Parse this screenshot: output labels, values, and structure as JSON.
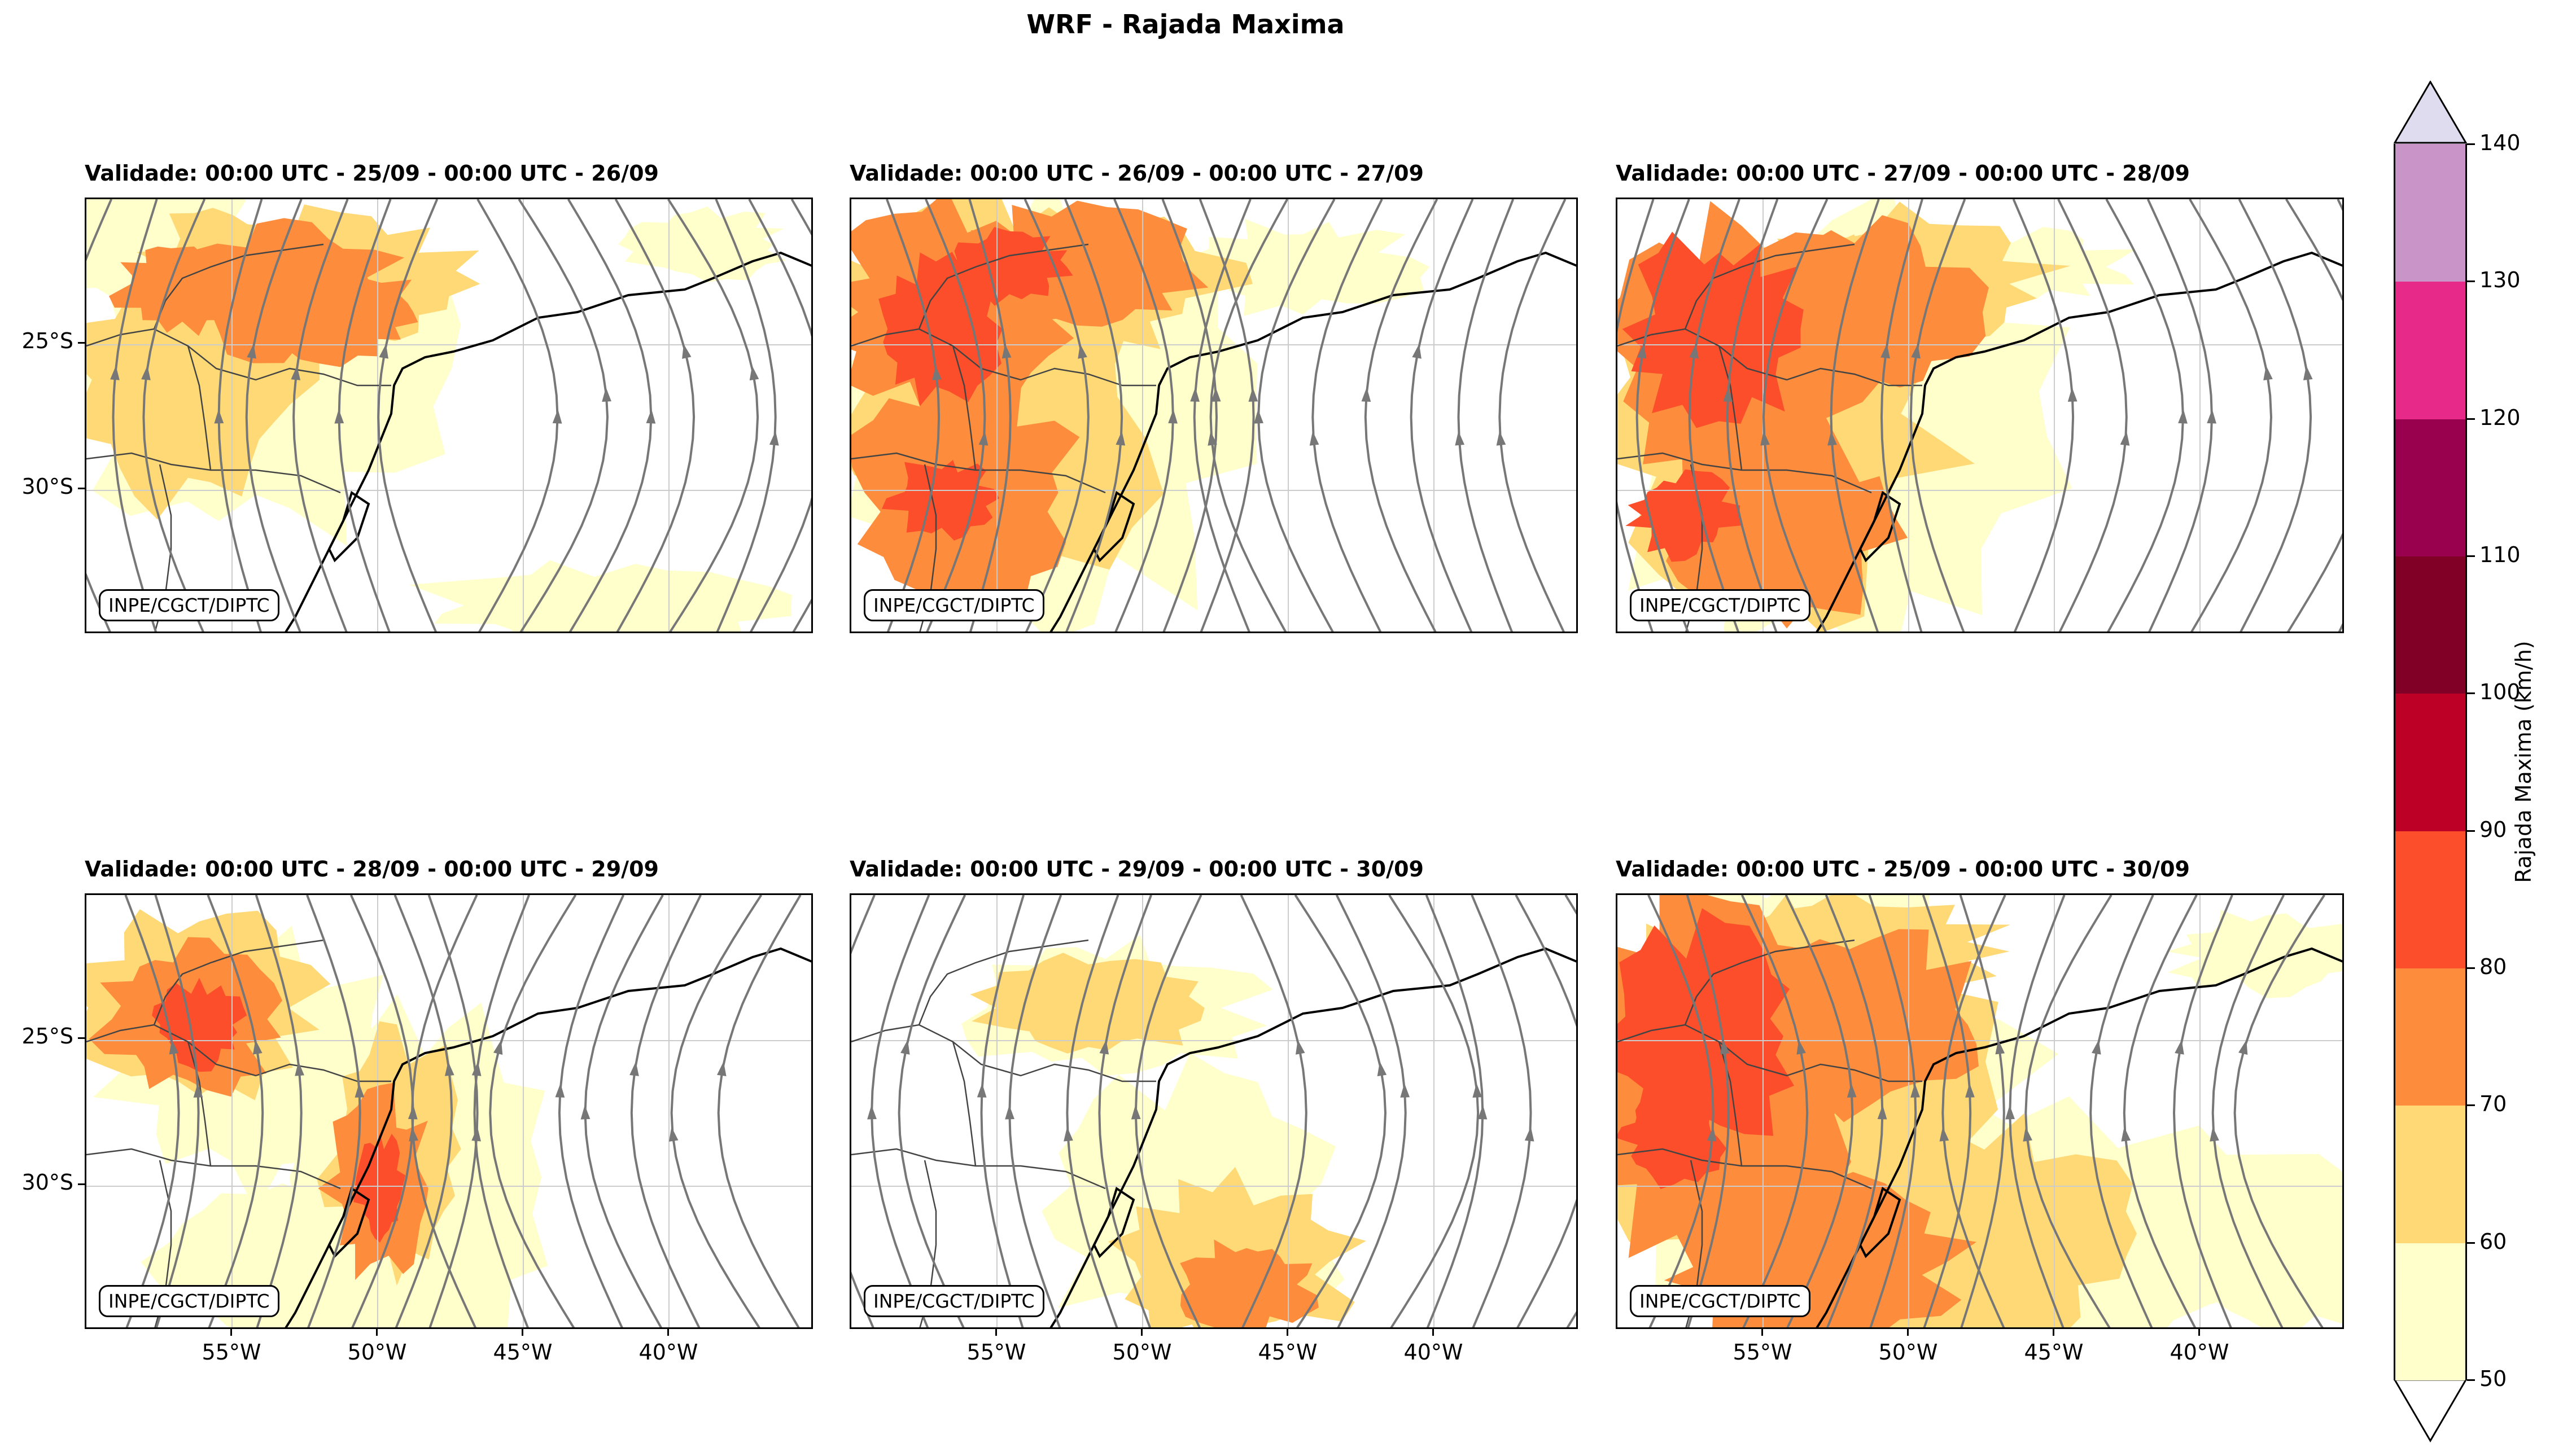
{
  "figure": {
    "title": "WRF - Rajada Maxima",
    "credit": "INPE/CGCT/DIPTC"
  },
  "panels": [
    {
      "title": "Validade: 00:00 UTC - 25/09 - 00:00 UTC - 26/09"
    },
    {
      "title": "Validade: 00:00 UTC - 26/09 - 00:00 UTC - 27/09"
    },
    {
      "title": "Validade: 00:00 UTC - 27/09 - 00:00 UTC - 28/09"
    },
    {
      "title": "Validade: 00:00 UTC - 28/09 - 00:00 UTC - 29/09"
    },
    {
      "title": "Validade: 00:00 UTC - 29/09 - 00:00 UTC - 30/09"
    },
    {
      "title": "Validade: 00:00 UTC - 25/09 - 00:00 UTC - 30/09"
    }
  ],
  "axes": {
    "lat_ticks": [
      "25°S",
      "30°S"
    ],
    "lon_ticks": [
      "55°W",
      "50°W",
      "45°W",
      "40°W"
    ]
  },
  "colorbar": {
    "label": "Rajada Maxima (km/h)",
    "ticks": [
      "50",
      "60",
      "70",
      "80",
      "90",
      "100",
      "110",
      "120",
      "130",
      "140"
    ],
    "levels": [
      50,
      60,
      70,
      80,
      90,
      100,
      110,
      120,
      130,
      140
    ],
    "colors": [
      "#ffffcc",
      "#fed976",
      "#fd8d3c",
      "#fc4e2a",
      "#bd0026",
      "#800026",
      "#99004d",
      "#e7298a",
      "#c994c7"
    ],
    "over_color": "#e0dcef",
    "under_color": "#ffffff"
  },
  "colors": {
    "streamline": "#777777",
    "coast": "#000000",
    "border": "#444444",
    "grid": "#cccccc"
  }
}
